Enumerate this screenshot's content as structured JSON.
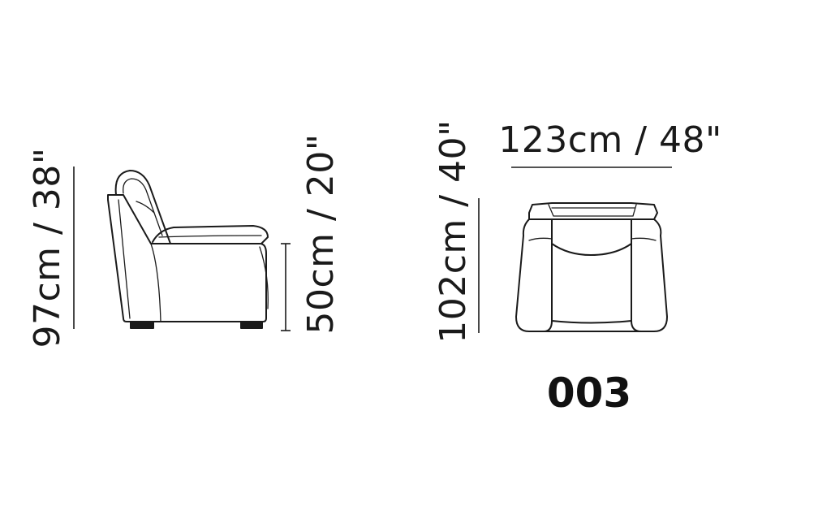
{
  "dimensions": {
    "overall_height": "97cm / 38\"",
    "seat_height": "50cm / 20\"",
    "depth": "102cm / 40\"",
    "width": "123cm / 48\""
  },
  "model_code": "003",
  "colors": {
    "line": "#1a1a1a",
    "background": "#ffffff"
  }
}
